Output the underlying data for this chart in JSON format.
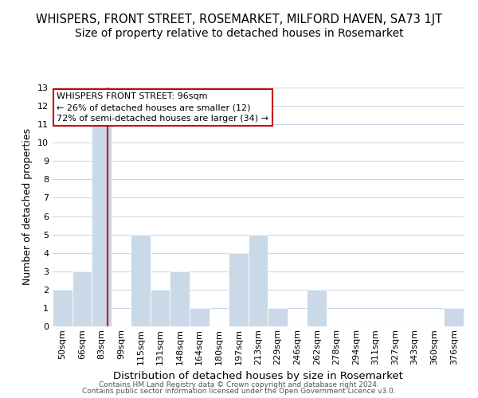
{
  "title": "WHISPERS, FRONT STREET, ROSEMARKET, MILFORD HAVEN, SA73 1JT",
  "subtitle": "Size of property relative to detached houses in Rosemarket",
  "xlabel": "Distribution of detached houses by size in Rosemarket",
  "ylabel": "Number of detached properties",
  "categories": [
    "50sqm",
    "66sqm",
    "83sqm",
    "99sqm",
    "115sqm",
    "131sqm",
    "148sqm",
    "164sqm",
    "180sqm",
    "197sqm",
    "213sqm",
    "229sqm",
    "246sqm",
    "262sqm",
    "278sqm",
    "294sqm",
    "311sqm",
    "327sqm",
    "343sqm",
    "360sqm",
    "376sqm"
  ],
  "values": [
    2,
    3,
    11,
    0,
    5,
    2,
    3,
    1,
    0,
    4,
    5,
    1,
    0,
    2,
    0,
    0,
    0,
    0,
    0,
    0,
    1
  ],
  "bar_color": "#c9d9e8",
  "ylim": [
    0,
    13
  ],
  "yticks": [
    0,
    1,
    2,
    3,
    4,
    5,
    6,
    7,
    8,
    9,
    10,
    11,
    12,
    13
  ],
  "vline_color": "#cc0000",
  "vline_sqm": 96,
  "annotation_text": "WHISPERS FRONT STREET: 96sqm\n← 26% of detached houses are smaller (12)\n72% of semi-detached houses are larger (34) →",
  "footer1": "Contains HM Land Registry data © Crown copyright and database right 2024.",
  "footer2": "Contains public sector information licensed under the Open Government Licence v3.0.",
  "background_color": "#ffffff",
  "grid_color": "#c8d8e8",
  "title_fontsize": 10.5,
  "subtitle_fontsize": 10,
  "annotation_fontsize": 8,
  "ylabel_fontsize": 9,
  "xlabel_fontsize": 9.5,
  "footer_fontsize": 6.5,
  "tick_fontsize": 8
}
